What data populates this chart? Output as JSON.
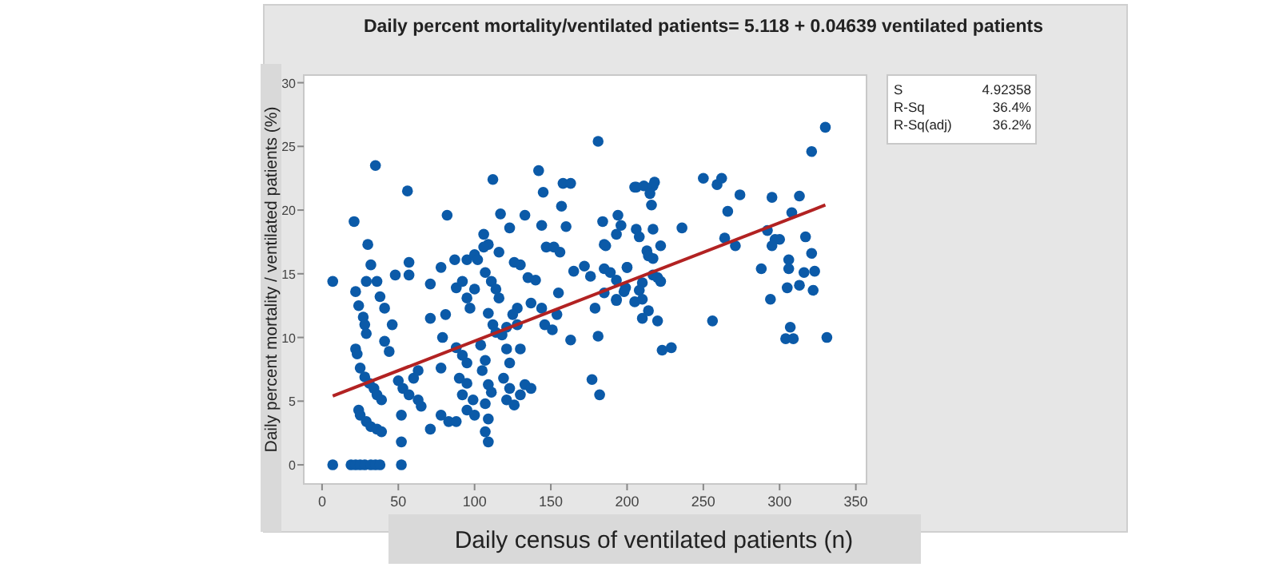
{
  "chart_data": {
    "type": "scatter",
    "title": "Daily percent mortality/ventilated patients= 5.118 + 0.04639 ventilated patients",
    "xlabel": "Daily census of ventilated patients (n)",
    "ylabel": "Daily percent mortality / ventilated patients (%)",
    "xlim": [
      -12,
      357
    ],
    "ylim": [
      -1.5,
      30.6
    ],
    "xticks": [
      0,
      50,
      100,
      150,
      200,
      250,
      300,
      350
    ],
    "yticks": [
      0,
      5,
      10,
      15,
      20,
      25,
      30
    ],
    "annotations": [
      "S",
      "4.92358",
      "R-Sq",
      "36.4%",
      "R-Sq(adj)",
      "36.2%"
    ],
    "series": [
      {
        "marker": "circle",
        "color": "#0b5aa8",
        "x": [
          7,
          7,
          19,
          22,
          25,
          28,
          32,
          35,
          38,
          52,
          30,
          32,
          29,
          36,
          22,
          24,
          27,
          28,
          29,
          38,
          41,
          48,
          57,
          57,
          46,
          41,
          44,
          22,
          23,
          25,
          28,
          31,
          34,
          36,
          39,
          24,
          25,
          29,
          32,
          36,
          39,
          50,
          53,
          57,
          60,
          63,
          52,
          52,
          71,
          63,
          65,
          71,
          71,
          78,
          79,
          81,
          78,
          78,
          83,
          88,
          87,
          95,
          100,
          102,
          88,
          92,
          95,
          97,
          100,
          88,
          92,
          95,
          90,
          95,
          92,
          99,
          95,
          100,
          104,
          107,
          105,
          109,
          111,
          107,
          109,
          107,
          109,
          107,
          111,
          114,
          116,
          109,
          112,
          114,
          118,
          121,
          116,
          109,
          121,
          123,
          119,
          123,
          121,
          126,
          130,
          133,
          137,
          128,
          128,
          130,
          125,
          135,
          140,
          137,
          130,
          126,
          144,
          146,
          151,
          154,
          163,
          147,
          152,
          156,
          155,
          165,
          172,
          176,
          179,
          185,
          185,
          177,
          182,
          181,
          193,
          200,
          35,
          56,
          21,
          82,
          106,
          112,
          117,
          123,
          133,
          142,
          145,
          144,
          158,
          163,
          157,
          160,
          181,
          184,
          194,
          196,
          205,
          106,
          330,
          321,
          250,
          259,
          262,
          274,
          266,
          295,
          313,
          308,
          292,
          264,
          271,
          297,
          300,
          295,
          317,
          306,
          306,
          316,
          323,
          321,
          288,
          305,
          313,
          322,
          294,
          206,
          211,
          217,
          218,
          215,
          216,
          193,
          206,
          208,
          217,
          222,
          236,
          186,
          213,
          214,
          217,
          185,
          189,
          200,
          217,
          220,
          222,
          210,
          208,
          199,
          193,
          214,
          210,
          220,
          223,
          229,
          256,
          307,
          304,
          309,
          331,
          198,
          193,
          205,
          210
        ],
        "values": [
          14.4,
          0,
          0,
          0,
          0,
          0,
          0,
          0,
          0,
          0,
          17.3,
          15.7,
          14.4,
          14.4,
          13.6,
          12.5,
          11.6,
          11,
          10.3,
          13.2,
          12.3,
          14.9,
          14.9,
          15.9,
          11,
          9.7,
          8.9,
          9.1,
          8.7,
          7.6,
          6.9,
          6.4,
          6,
          5.5,
          5.1,
          4.3,
          3.9,
          3.4,
          3,
          2.8,
          2.6,
          6.6,
          6,
          5.5,
          6.8,
          7.4,
          3.9,
          1.8,
          2.8,
          5.1,
          4.6,
          14.2,
          11.5,
          15.5,
          10,
          11.8,
          7.6,
          3.9,
          3.4,
          3.4,
          16.1,
          16.1,
          16.5,
          16.1,
          13.9,
          14.4,
          13.1,
          12.3,
          13.8,
          9.2,
          8.6,
          8,
          6.8,
          6.4,
          5.5,
          5.1,
          4.3,
          3.9,
          9.4,
          8.2,
          7.4,
          6.3,
          5.7,
          4.8,
          3.6,
          2.6,
          1.8,
          15.1,
          14.4,
          13.8,
          13.1,
          11.9,
          11,
          10.4,
          10.2,
          10.8,
          16.7,
          17.3,
          9.1,
          8,
          6.8,
          6,
          5.1,
          4.7,
          5.5,
          6.3,
          6,
          12.3,
          11,
          9.1,
          11.8,
          14.7,
          14.5,
          12.7,
          15.7,
          15.9,
          12.3,
          11,
          10.6,
          11.8,
          9.8,
          17.1,
          17.1,
          16.7,
          13.5,
          15.2,
          15.6,
          14.8,
          12.3,
          13.5,
          17.3,
          6.7,
          5.5,
          10.1,
          13,
          15.5,
          23.5,
          21.5,
          19.1,
          19.6,
          18.1,
          22.4,
          19.7,
          18.6,
          19.6,
          23.1,
          21.4,
          18.8,
          22.1,
          22.1,
          20.3,
          18.7,
          25.4,
          19.1,
          19.6,
          18.8,
          21.8,
          17.1,
          26.5,
          24.6,
          22.5,
          22,
          22.5,
          21.2,
          19.9,
          21,
          21.1,
          19.8,
          18.4,
          17.8,
          17.2,
          17.7,
          17.7,
          17.2,
          17.9,
          16.1,
          15.4,
          15.1,
          15.2,
          16.6,
          15.4,
          13.9,
          14.1,
          13.7,
          13,
          21.8,
          21.9,
          21.9,
          22.2,
          21.3,
          20.4,
          18.1,
          18.5,
          17.9,
          18.5,
          17.2,
          18.6,
          17.2,
          16.8,
          16.4,
          16.2,
          15.4,
          15.1,
          15.5,
          14.9,
          14.7,
          14.4,
          14.3,
          13.7,
          13.9,
          14.5,
          12.1,
          11.5,
          11.3,
          9,
          9.2,
          11.3,
          10.8,
          9.9,
          9.9,
          10,
          13.6,
          12.9,
          12.8,
          13
        ]
      },
      {
        "type": "line",
        "color": "#b22222",
        "x": [
          7,
          330
        ],
        "values": [
          5.4,
          20.4
        ]
      }
    ]
  }
}
